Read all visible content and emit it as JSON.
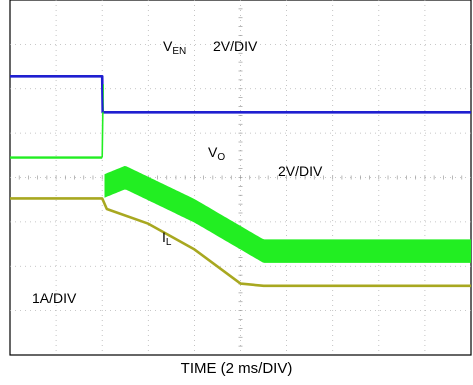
{
  "chart_data": {
    "type": "line",
    "title": "",
    "xlabel": "TIME (2 ms/DIV)",
    "ylabel": "",
    "grid": true,
    "x_divisions": 10,
    "y_divisions": 8,
    "x_unit": "ms",
    "x_per_div": 2,
    "x_range": [
      0,
      20
    ],
    "series": [
      {
        "name": "V",
        "name_subscript": "EN",
        "scale": "2V/DIV",
        "color": "#1f1fd0",
        "x": [
          0,
          4.0,
          4.02,
          20
        ],
        "divs": [
          6.28,
          6.28,
          5.47,
          5.47
        ]
      },
      {
        "name": "V",
        "name_subscript": "O",
        "scale": "2V/DIV",
        "color": "#a8a820",
        "x": [
          0,
          4.0,
          4.2,
          6.0,
          8.0,
          10.0,
          11.0,
          20
        ],
        "divs": [
          3.53,
          3.53,
          3.29,
          2.96,
          2.38,
          1.61,
          1.56,
          1.56
        ]
      },
      {
        "name": "I",
        "name_subscript": "L",
        "scale": "1A/DIV",
        "color": "#22ee22",
        "ripple_divs": 0.53,
        "x": [
          0,
          4.0,
          4.1,
          5.0,
          8.0,
          11.0,
          20
        ],
        "divs": [
          4.45,
          4.45,
          3.81,
          4.0,
          3.25,
          2.34,
          2.34
        ]
      }
    ]
  }
}
